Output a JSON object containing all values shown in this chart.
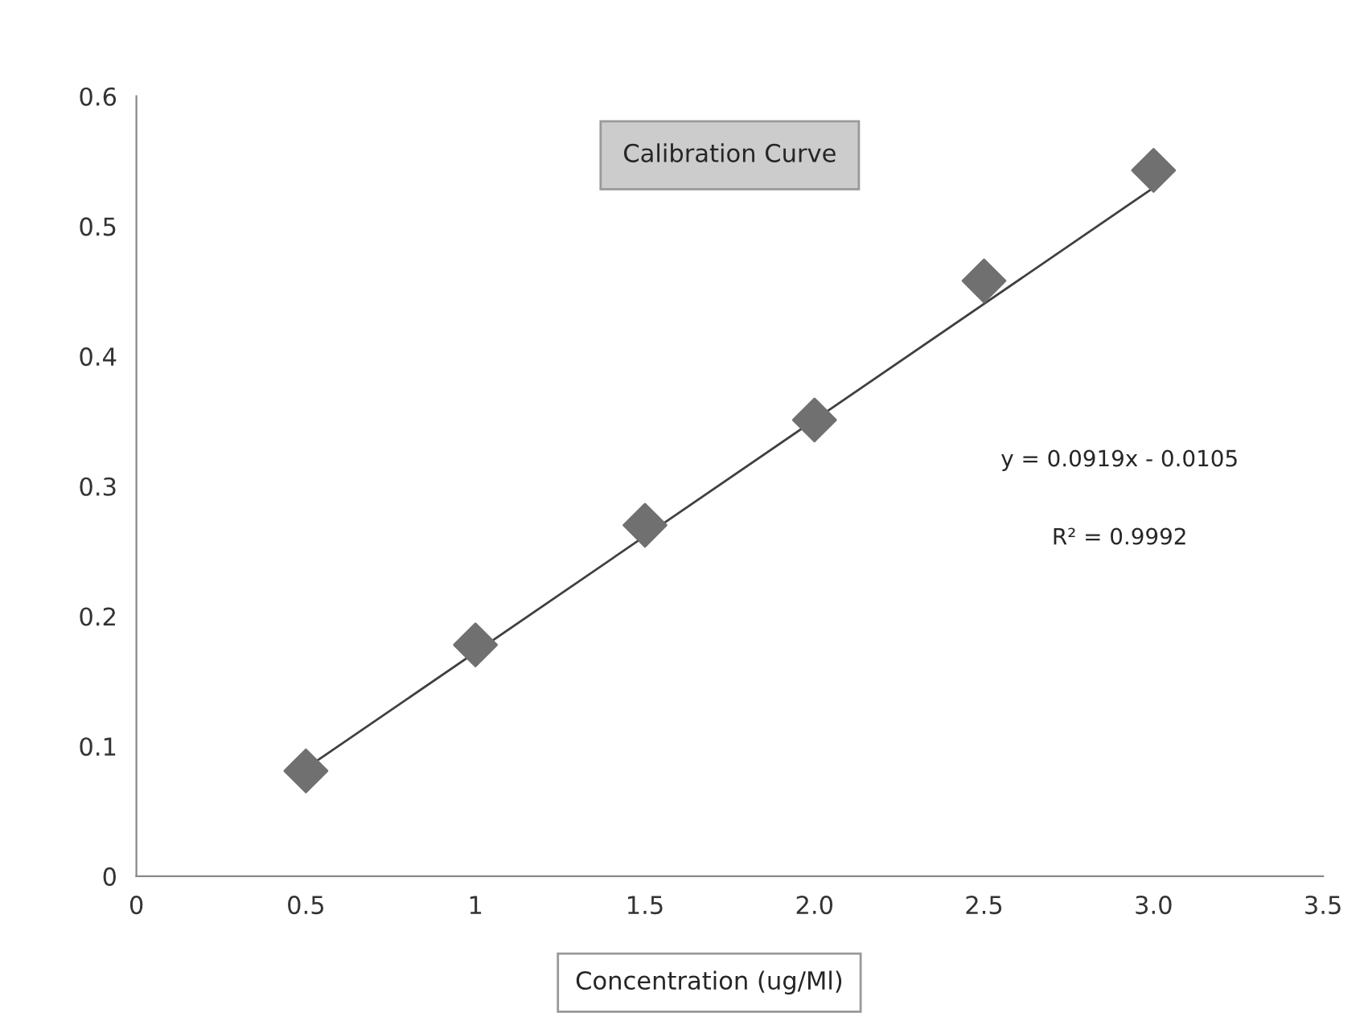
{
  "chart_data": {
    "type": "scatter",
    "title": "Calibration Curve",
    "xlabel": "Concentration (ug/Ml)",
    "series": [
      {
        "color": "#707070",
        "marker": "diamond",
        "x": [
          0.5,
          1,
          1.5,
          2,
          2.5,
          3
        ],
        "values": [
          0.081,
          0.178,
          0.27,
          0.351,
          0.458,
          0.543
        ]
      },
      {
        "type": "line",
        "color": "#404040",
        "marker": "none",
        "line_style": "solid",
        "x": [
          0.5,
          3.03
        ],
        "values": [
          0.083,
          0.535
        ]
      }
    ],
    "annotations": [
      "y = 0.0919x - 0.0105",
      "R² = 0.9992"
    ],
    "xlim": [
      0,
      3.5
    ],
    "xticks": [
      0,
      0.5,
      1,
      1.5,
      {
        "value": 2,
        "label": "2.0"
      },
      2.5,
      {
        "value": 3,
        "label": "3.0"
      },
      3.5
    ],
    "ylim": [
      0,
      0.6
    ],
    "yticks": [
      0,
      0.1,
      0.2,
      0.3,
      0.4,
      0.5,
      0.6
    ],
    "grid": false,
    "legend": false
  }
}
